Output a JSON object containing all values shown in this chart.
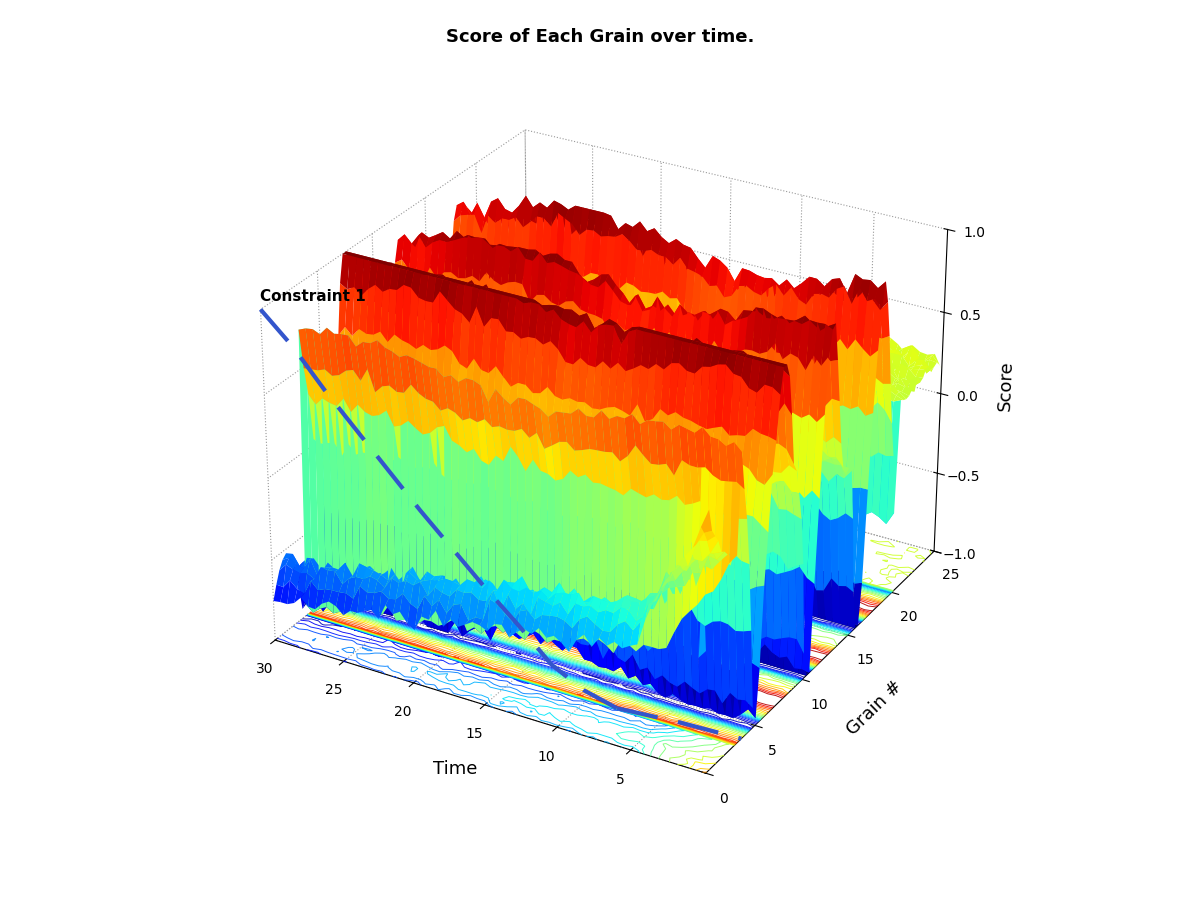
{
  "title": "Score of Each Grain over time.",
  "xlabel": "Time",
  "ylabel": "Grain #",
  "zlabel": "Score",
  "x_ticks": [
    5,
    10,
    15,
    20,
    25,
    30
  ],
  "y_ticks": [
    0,
    5,
    10,
    15,
    20,
    25
  ],
  "z_ticks": [
    -1,
    -0.5,
    0,
    0.5,
    1
  ],
  "constraint_label": "Constraint 1",
  "background_color": "#ffffff",
  "elev": 28,
  "azim": -60
}
